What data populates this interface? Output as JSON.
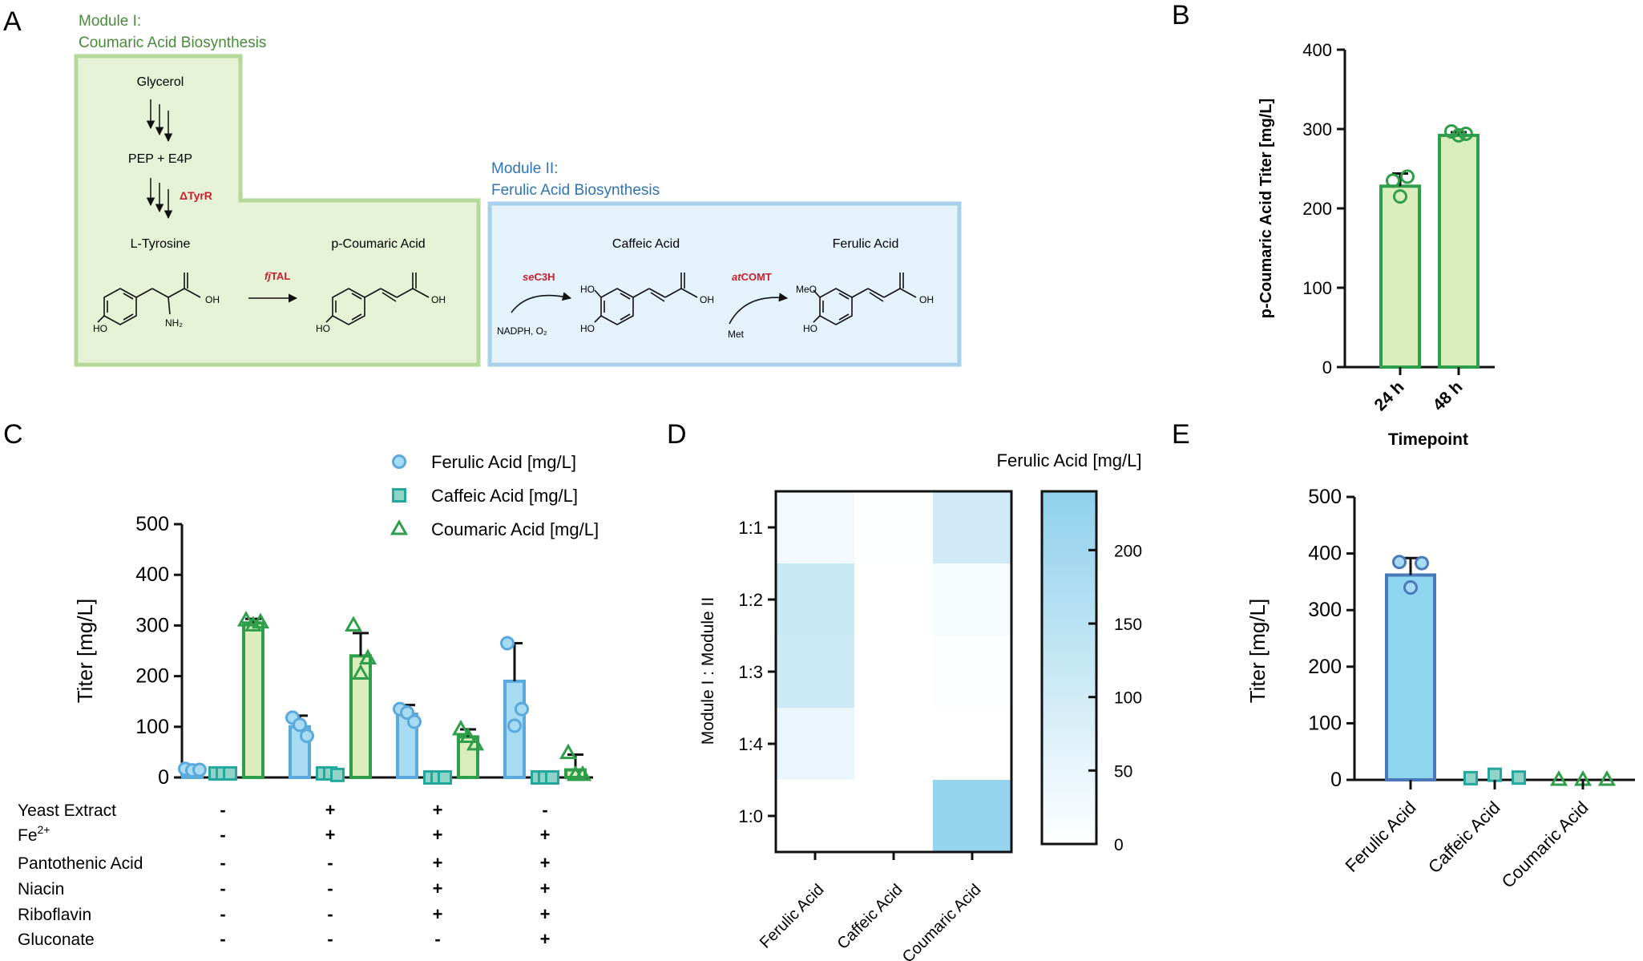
{
  "panel_labels": [
    "A",
    "B",
    "C",
    "D",
    "E"
  ],
  "colors": {
    "module1_fill": "#e6f2d6",
    "module1_border": "#b5d99a",
    "module1_text": "#4a8a3c",
    "module2_fill": "#e3f2fb",
    "module2_border": "#a9d0ea",
    "module2_text": "#2e74b5",
    "enzyme_red": "#c8202c",
    "ferulic": "#5aa9dc",
    "ferulic_fill": "#a6dbf2",
    "caffeic": "#22a89c",
    "caffeic_fill": "#8fd3c9",
    "coumaric": "#2e9e4a",
    "coumaric_fill": "#d9eebc",
    "heat_max": "#8fd0ec"
  },
  "pathway": {
    "module1": {
      "title_line1": "Module I:",
      "title_line2": "Coumaric Acid Biosynthesis"
    },
    "module2": {
      "title_line1": "Module II:",
      "title_line2": "Ferulic Acid Biosynthesis"
    },
    "glycerol": "Glycerol",
    "pep_e4p": "PEP + E4P",
    "tyrr": "ΔTyrR",
    "tyrosine": "L-Tyrosine",
    "p_coumaric": "p-Coumaric Acid",
    "caffeic": "Caffeic Acid",
    "ferulic": "Ferulic Acid",
    "tal_prefix": "fj",
    "tal_suffix": "TAL",
    "c3h_prefix": "se",
    "c3h_suffix": "C3H",
    "comt_prefix": "at",
    "comt_suffix": "COMT",
    "nadph": "NADPH, O₂",
    "met": "Met",
    "atom_oh": "OH",
    "atom_ho": "HO",
    "atom_nh2": "NH₂",
    "atom_meo": "MeO"
  },
  "chart_data": [
    {
      "panel": "B",
      "type": "bar",
      "categories": [
        "24 h",
        "48 h"
      ],
      "values": [
        228,
        292
      ],
      "errors": [
        16,
        4
      ],
      "points": [
        [
          235,
          215,
          240
        ],
        [
          297,
          292,
          294
        ]
      ],
      "xlabel": "Timepoint",
      "ylabel": "p-Coumaric Acid Titer [mg/L]",
      "ylim": [
        0,
        400
      ],
      "yticks": [
        "0",
        "100",
        "200",
        "300",
        "400"
      ]
    },
    {
      "panel": "C",
      "type": "bar",
      "ylabel": "Titer [mg/L]",
      "ylim": [
        0,
        500
      ],
      "yticks": [
        "0",
        "100",
        "200",
        "300",
        "400",
        "500"
      ],
      "series": [
        {
          "name": "Ferulic Acid [mg/L]",
          "values": [
            15,
            100,
            125,
            190
          ],
          "errors": [
            5,
            22,
            18,
            75
          ],
          "points": [
            [
              17,
              14,
              15
            ],
            [
              118,
              104,
              82
            ],
            [
              135,
              128,
              110
            ],
            [
              265,
              102,
              135
            ]
          ]
        },
        {
          "name": "Caffeic Acid [mg/L]",
          "values": [
            8,
            8,
            0,
            0
          ],
          "errors": [
            0,
            0,
            0,
            0
          ],
          "points": [
            [
              8,
              8,
              8
            ],
            [
              8,
              8,
              5
            ],
            [
              0,
              0,
              0
            ],
            [
              0,
              0,
              0
            ]
          ]
        },
        {
          "name": "Coumaric Acid [mg/L]",
          "values": [
            305,
            240,
            80,
            15
          ],
          "errors": [
            8,
            45,
            15,
            30
          ],
          "points": [
            [
              310,
              300,
              306
            ],
            [
              300,
              205,
              235
            ],
            [
              95,
              80,
              65
            ],
            [
              48,
              5,
              5
            ]
          ]
        }
      ],
      "conditions": {
        "labels": [
          "Yeast Extract",
          "Fe",
          "Pantothenic Acid",
          "Niacin",
          "Riboflavin",
          "Gluconate"
        ],
        "fe_superscript": "2+",
        "matrix": [
          [
            "-",
            "+",
            "+",
            "-"
          ],
          [
            "-",
            "+",
            "+",
            "+"
          ],
          [
            "-",
            "-",
            "+",
            "+"
          ],
          [
            "-",
            "-",
            "+",
            "+"
          ],
          [
            "-",
            "-",
            "+",
            "+"
          ],
          [
            "-",
            "-",
            "-",
            "+"
          ]
        ]
      }
    },
    {
      "panel": "D",
      "type": "heatmap",
      "title": "Ferulic Acid [mg/L]",
      "ylabel": "Module I : Module II",
      "rows": [
        "1:1",
        "1:2",
        "1:3",
        "1:4",
        "1:0"
      ],
      "columns": [
        "Ferulic Acid",
        "Caffeic Acid",
        "Coumaric Acid"
      ],
      "values": [
        [
          25,
          2,
          100
        ],
        [
          115,
          0,
          20
        ],
        [
          110,
          0,
          5
        ],
        [
          45,
          0,
          0
        ],
        [
          0,
          0,
          225
        ]
      ],
      "scale_range": [
        0,
        240
      ],
      "colorbar_ticks": [
        "0",
        "50",
        "100",
        "150",
        "200"
      ]
    },
    {
      "panel": "E",
      "type": "bar",
      "categories": [
        "Ferulic Acid",
        "Caffeic Acid",
        "Coumaric Acid"
      ],
      "values": [
        362,
        5,
        0
      ],
      "errors": [
        30,
        0,
        0
      ],
      "points": [
        [
          385,
          340,
          383
        ],
        [
          3,
          9,
          4
        ],
        [
          0,
          0,
          0
        ]
      ],
      "ylabel": "Titer [mg/L]",
      "ylim": [
        0,
        500
      ],
      "yticks": [
        "0",
        "100",
        "200",
        "300",
        "400",
        "500"
      ]
    }
  ]
}
